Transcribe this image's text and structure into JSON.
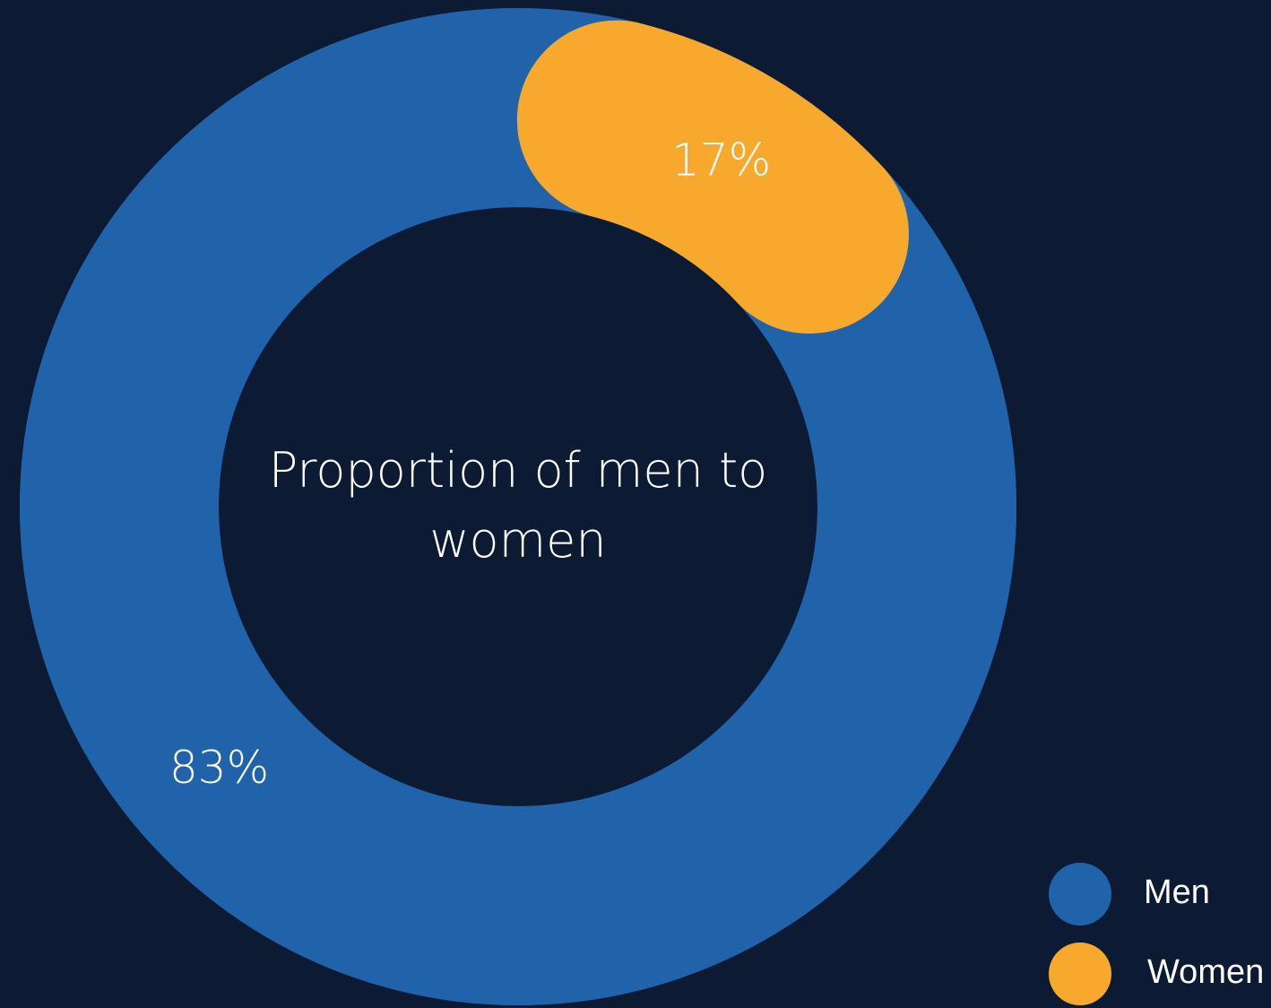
{
  "chart_data": {
    "type": "donut",
    "title": "Proportion of men to women",
    "categories": [
      "Men",
      "Women"
    ],
    "values": [
      83,
      17
    ],
    "value_labels": [
      "83%",
      "17%"
    ],
    "colors": [
      "#2163aa",
      "#f7a92e"
    ],
    "legend": "bottom-right"
  }
}
